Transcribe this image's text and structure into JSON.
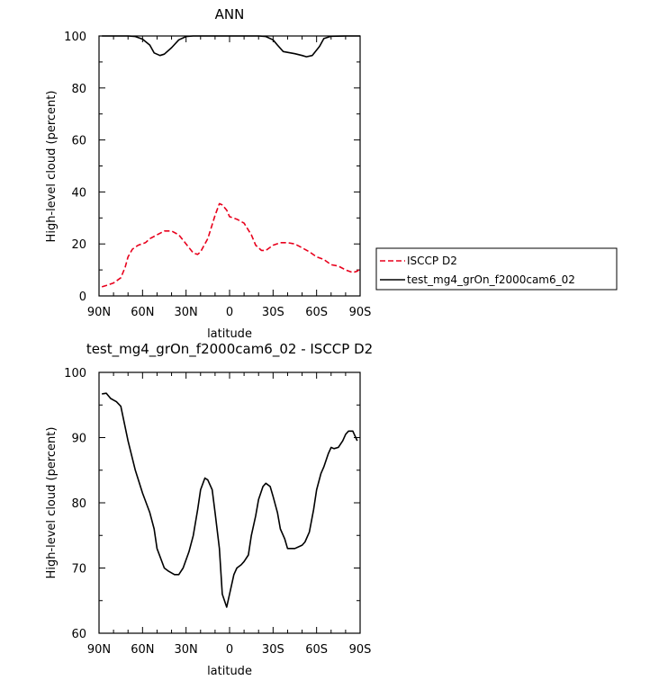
{
  "chart_data": [
    {
      "type": "line",
      "title": "ANN",
      "xlabel": "latitude",
      "ylabel": "High-level cloud (percent)",
      "x_tick_labels": [
        "90N",
        "60N",
        "30N",
        "0",
        "30S",
        "60S",
        "90S"
      ],
      "x_ticks": [
        90,
        60,
        30,
        0,
        -30,
        -60,
        -90
      ],
      "xlim": [
        90,
        -90
      ],
      "y_ticks": [
        0,
        20,
        40,
        60,
        80,
        100
      ],
      "ylim": [
        0,
        100
      ],
      "legend_position": "right",
      "series": [
        {
          "name": "ISCCP D2",
          "color": "#e8001c",
          "dash": "dashed",
          "x": [
            88,
            85,
            80,
            75,
            72,
            70,
            67,
            63,
            58,
            55,
            50,
            45,
            40,
            35,
            30,
            25,
            22,
            20,
            15,
            10,
            7,
            5,
            2,
            0,
            -5,
            -10,
            -15,
            -18,
            -22,
            -25,
            -30,
            -35,
            -40,
            -45,
            -50,
            -55,
            -60,
            -65,
            -70,
            -75,
            -80,
            -85,
            -88,
            -90
          ],
          "y": [
            3.5,
            4,
            5,
            7,
            11,
            15,
            18,
            19.5,
            20.5,
            22,
            23.5,
            25,
            25,
            23.5,
            20,
            16.5,
            16,
            17,
            22,
            31,
            35.5,
            35,
            33,
            30.5,
            29.5,
            28,
            23.5,
            19.5,
            17.5,
            17.5,
            19.5,
            20.5,
            20.5,
            20,
            18.5,
            17,
            15,
            14,
            12,
            11.5,
            10,
            9,
            9.5,
            10.5
          ]
        },
        {
          "name": "test_mg4_grOn_f2000cam6_02",
          "color": "#000000",
          "dash": "solid",
          "x": [
            88,
            80,
            70,
            65,
            60,
            55,
            52,
            48,
            45,
            40,
            35,
            30,
            25,
            20,
            0,
            -20,
            -25,
            -30,
            -33,
            -37,
            -42,
            -45,
            -50,
            -53,
            -57,
            -62,
            -65,
            -70,
            -80,
            -88,
            -90
          ],
          "y": [
            100,
            100,
            100,
            99.8,
            98.8,
            96.5,
            93.5,
            92.5,
            93,
            95.5,
            98.5,
            99.8,
            100,
            100,
            100,
            100,
            99.8,
            98.5,
            96.5,
            94,
            93.5,
            93.2,
            92.5,
            92,
            92.5,
            96,
            99,
            99.9,
            100,
            100,
            100
          ]
        }
      ]
    },
    {
      "type": "line",
      "title": "test_mg4_grOn_f2000cam6_02 - ISCCP D2",
      "xlabel": "latitude",
      "ylabel": "High-level cloud (percent)",
      "x_tick_labels": [
        "90N",
        "60N",
        "30N",
        "0",
        "30S",
        "60S",
        "90S"
      ],
      "x_ticks": [
        90,
        60,
        30,
        0,
        -30,
        -60,
        -90
      ],
      "xlim": [
        90,
        -90
      ],
      "y_ticks": [
        60,
        70,
        80,
        90,
        100
      ],
      "ylim": [
        60,
        100
      ],
      "series": [
        {
          "color": "#000000",
          "dash": "solid",
          "x": [
            88,
            85,
            82,
            78,
            75,
            70,
            65,
            60,
            55,
            52,
            50,
            45,
            42,
            38,
            35,
            32,
            28,
            25,
            22,
            20,
            17,
            15,
            12,
            10,
            7,
            5,
            2,
            0,
            -3,
            -5,
            -8,
            -10,
            -13,
            -15,
            -18,
            -20,
            -23,
            -25,
            -28,
            -30,
            -33,
            -35,
            -38,
            -40,
            -45,
            -50,
            -52,
            -55,
            -58,
            -60,
            -63,
            -65,
            -68,
            -70,
            -72,
            -75,
            -78,
            -80,
            -82,
            -85,
            -88
          ],
          "y": [
            96.7,
            96.8,
            96,
            95.5,
            94.8,
            89.5,
            85,
            81.5,
            78.5,
            76,
            73,
            70,
            69.5,
            69,
            69,
            70,
            72.5,
            75,
            79,
            82,
            83.8,
            83.5,
            82,
            78.5,
            73,
            66,
            64,
            66,
            69,
            70,
            70.5,
            71,
            72,
            75,
            78,
            80.5,
            82.5,
            83,
            82.5,
            81,
            78.5,
            76,
            74.5,
            73,
            73,
            73.5,
            74,
            75.5,
            79,
            82,
            84.5,
            85.5,
            87.5,
            88.5,
            88.3,
            88.5,
            89.5,
            90.5,
            91,
            91,
            89.5
          ]
        }
      ]
    }
  ]
}
